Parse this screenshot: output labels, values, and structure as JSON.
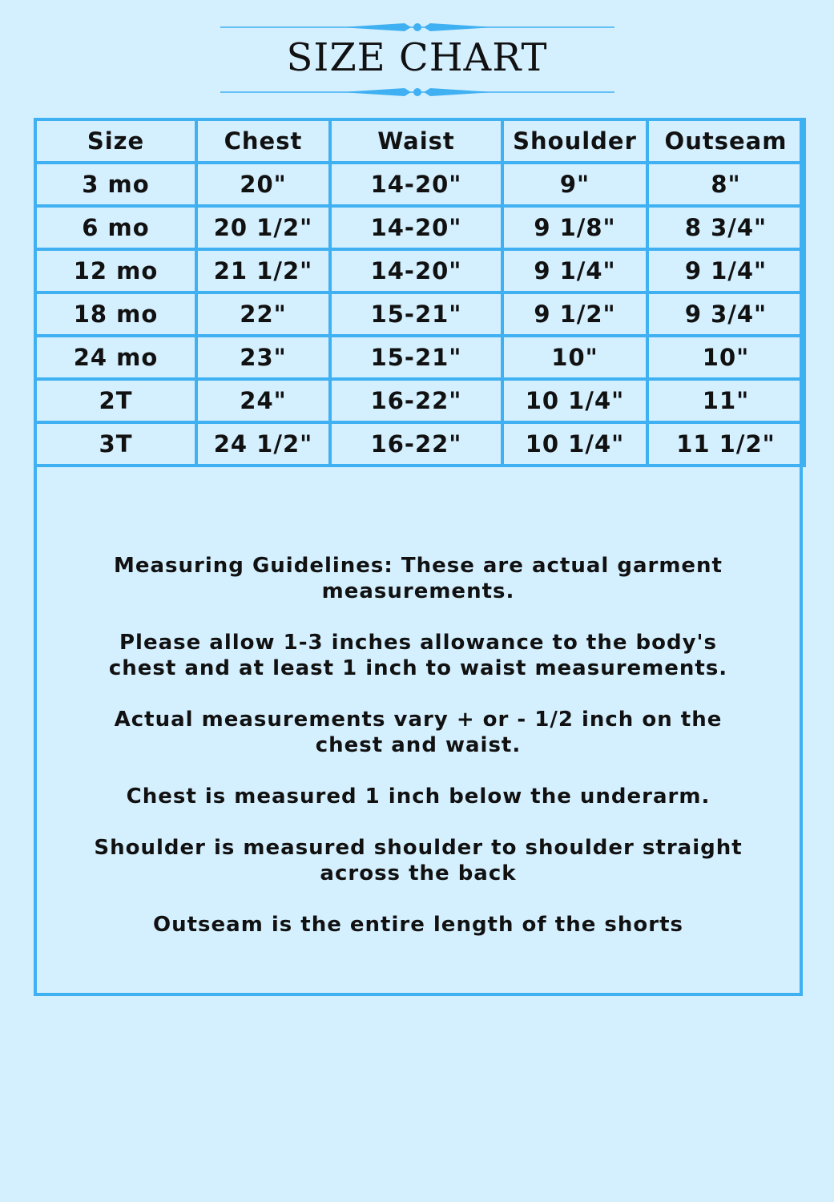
{
  "title": "SIZE CHART",
  "accent_color": "#3fb0f2",
  "table": {
    "headers": [
      "Size",
      "Chest",
      "Waist",
      "Shoulder",
      "Outseam"
    ],
    "rows": [
      [
        "3 mo",
        "20\"",
        "14-20\"",
        "9\"",
        "8\""
      ],
      [
        "6 mo",
        "20 1/2\"",
        "14-20\"",
        "9 1/8\"",
        "8 3/4\""
      ],
      [
        "12 mo",
        "21 1/2\"",
        "14-20\"",
        "9 1/4\"",
        "9 1/4\""
      ],
      [
        "18 mo",
        "22\"",
        "15-21\"",
        "9 1/2\"",
        "9 3/4\""
      ],
      [
        "24 mo",
        "23\"",
        "15-21\"",
        "10\"",
        "10\""
      ],
      [
        "2T",
        "24\"",
        "16-22\"",
        "10 1/4\"",
        "11\""
      ],
      [
        "3T",
        "24 1/2\"",
        "16-22\"",
        "10 1/4\"",
        "11 1/2\""
      ]
    ]
  },
  "notes": [
    "Measuring Guidelines: These are actual garment measurements.",
    "Please allow 1-3 inches allowance to the body's chest and at least 1 inch to waist measurements.",
    "Actual measurements vary + or - 1/2 inch on the chest and waist.",
    "Chest is measured 1 inch below the underarm.",
    "Shoulder is measured shoulder to shoulder straight across the back",
    "Outseam is the entire length of the shorts"
  ]
}
